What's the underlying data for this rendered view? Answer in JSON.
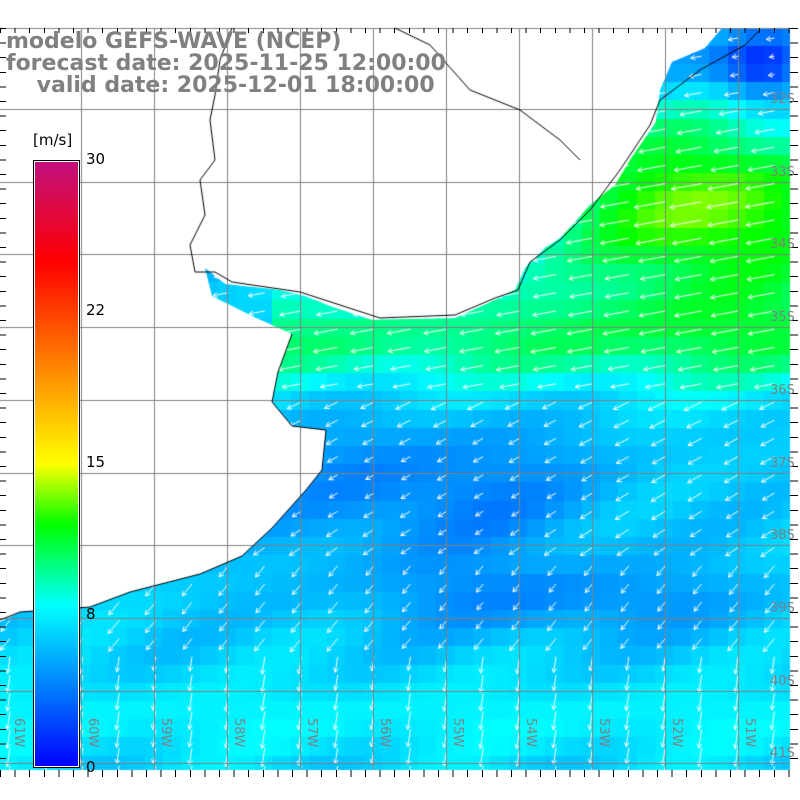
{
  "title": {
    "line1": "modelo GEFS-WAVE (NCEP)",
    "line2": "forecast date: 2025-11-25 12:00:00",
    "line3": "    valid date: 2025-12-01 18:00:00"
  },
  "colorbar": {
    "unit": "[m/s]",
    "labels": [
      "30",
      "22",
      "15",
      "8",
      "0"
    ],
    "range": [
      0,
      30
    ],
    "stops": [
      {
        "v": 0,
        "color": "#0000ff"
      },
      {
        "v": 4,
        "color": "#0080ff"
      },
      {
        "v": 8,
        "color": "#00ffff"
      },
      {
        "v": 12,
        "color": "#00ff00"
      },
      {
        "v": 15,
        "color": "#ffff00"
      },
      {
        "v": 20,
        "color": "#ff8000"
      },
      {
        "v": 25,
        "color": "#ff0000"
      },
      {
        "v": 30,
        "color": "#c0107f"
      }
    ]
  },
  "axes": {
    "longitudes": [
      "61W",
      "60W",
      "59W",
      "58W",
      "57W",
      "56W",
      "55W",
      "54W",
      "53W",
      "52W",
      "51W"
    ],
    "latitudes": [
      "32S",
      "33S",
      "34S",
      "35S",
      "36S",
      "37S",
      "38S",
      "39S",
      "40S",
      "41S"
    ]
  },
  "colors": {
    "grid": "#808080",
    "coast": "#000000",
    "land": "#ffffff",
    "arrow": "#ffffff"
  }
}
